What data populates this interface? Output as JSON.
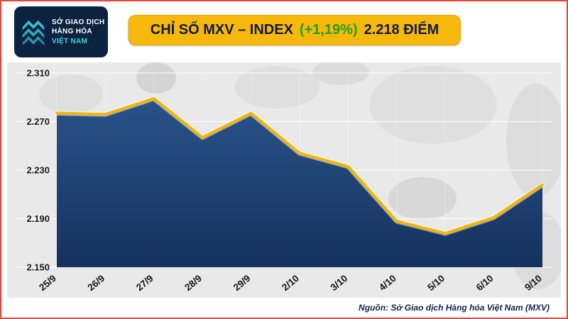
{
  "logo": {
    "lines": [
      "SỞ GIAO DỊCH",
      "HÀNG HÓA",
      "VIỆT NAM"
    ]
  },
  "header": {
    "title_main": "CHỈ SỐ MXV – INDEX",
    "title_change": "(+1,19%)",
    "title_value": "2.218 ĐIỂM"
  },
  "footer": {
    "source": "Nguồn: Sở Giao dịch Hàng hóa Việt Nam (MXV)"
  },
  "colors": {
    "accent_gold": "#f2b705",
    "navy": "#0c2340",
    "area_fill_top": "#2a5289",
    "area_fill_bottom": "#15325e",
    "change_green": "#1fa11f",
    "panel_gray": "#e9e9e9",
    "frame_red": "#e2483d",
    "logo_cyan": "#35c4d7"
  },
  "chart_data": {
    "type": "area",
    "title": "CHỈ SỐ MXV – INDEX (+1,19%) 2.218 ĐIỂM",
    "categories": [
      "25/9",
      "26/9",
      "27/9",
      "28/9",
      "29/9",
      "2/10",
      "3/10",
      "4/10",
      "5/10",
      "6/10",
      "9/10"
    ],
    "values": [
      2277,
      2276,
      2289,
      2257,
      2277,
      2244,
      2233,
      2188,
      2178,
      2191,
      2218
    ],
    "xlabel": "",
    "ylabel": "",
    "ylim": [
      2150,
      2310
    ],
    "yticks": [
      2310,
      2270,
      2230,
      2190,
      2150
    ],
    "ytick_labels": [
      "2.310",
      "2.270",
      "2.230",
      "2.190",
      "2.150"
    ],
    "grid": true,
    "legend": "none",
    "line_color": "#f2b705",
    "area_color": "#1d3f72",
    "source": "Nguồn: Sở Giao dịch Hàng hóa Việt Nam (MXV)"
  }
}
